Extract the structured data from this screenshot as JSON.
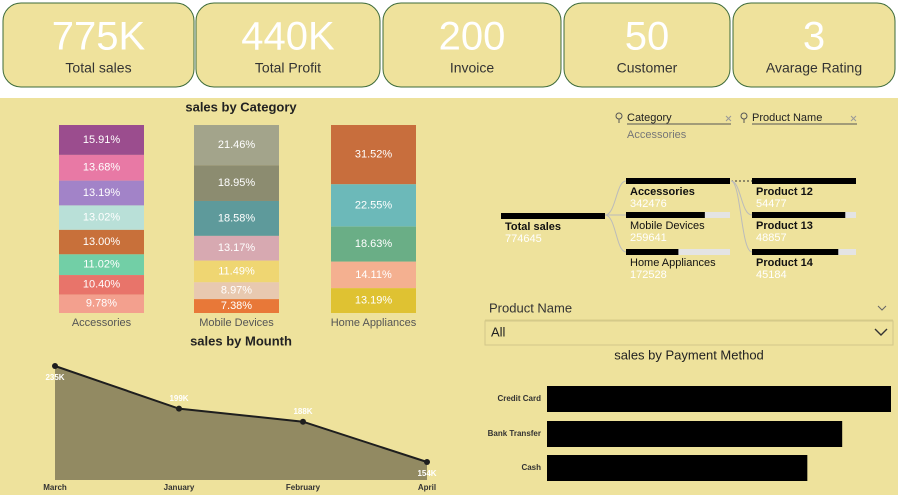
{
  "kpis": [
    {
      "value": "775K",
      "label": "Total sales"
    },
    {
      "value": "440K",
      "label": "Total Profit"
    },
    {
      "value": "200",
      "label": "Invoice"
    },
    {
      "value": "50",
      "label": "Customer"
    },
    {
      "value": "3",
      "label": "Avarage Rating"
    }
  ],
  "chart_data": [
    {
      "type": "stacked-column",
      "title": "sales by Category",
      "categories": [
        "Accessories",
        "Mobile Devices",
        "Home Appliances"
      ],
      "stacks": [
        {
          "values": [
            15.91,
            13.68,
            13.19,
            13.02,
            13.0,
            11.02,
            10.4,
            9.78
          ],
          "value_labels": [
            "15.91%",
            "13.68%",
            "13.19%",
            "13.02%",
            "13.00%",
            "11.02%",
            "10.40%",
            "9.78%"
          ],
          "colors": [
            "#9b4d8e",
            "#e879a5",
            "#a283c8",
            "#b9e0d8",
            "#c8703a",
            "#72cfa6",
            "#e8746a",
            "#f3a08e"
          ]
        },
        {
          "values": [
            21.46,
            18.95,
            18.58,
            13.17,
            11.49,
            8.97,
            7.38
          ],
          "value_labels": [
            "21.46%",
            "18.95%",
            "18.58%",
            "13.17%",
            "11.49%",
            "8.97%",
            "7.38%"
          ],
          "colors": [
            "#a3a48b",
            "#8c8c70",
            "#5e9a9b",
            "#d7a9b1",
            "#efd672",
            "#e8c9b0",
            "#e87838"
          ]
        },
        {
          "values": [
            31.52,
            22.55,
            18.63,
            14.11,
            13.19
          ],
          "value_labels": [
            "31.52%",
            "22.55%",
            "18.63%",
            "14.11%",
            "13.19%"
          ],
          "colors": [
            "#c86e3d",
            "#6cb9b9",
            "#6aae86",
            "#f4b090",
            "#dfc232"
          ]
        }
      ]
    },
    {
      "type": "area",
      "title": "sales by Mounth",
      "categories": [
        "March",
        "January",
        "February",
        "April"
      ],
      "values": [
        235000,
        199000,
        188000,
        154000
      ],
      "value_labels": [
        "235K",
        "199K",
        "188K",
        "154K"
      ],
      "color": "#928a62",
      "line_color": "#1e1e1e"
    },
    {
      "type": "hbar",
      "title": "sales by Payment Method",
      "categories": [
        "Credit Card",
        "Bank Transfer",
        "Cash"
      ],
      "values": [
        296000,
        254000,
        224000
      ],
      "color": "#000000"
    }
  ],
  "decomposition_tree": {
    "filters": [
      {
        "label": "Category",
        "value": "Accessories"
      },
      {
        "label": "Product Name"
      }
    ],
    "levels": [
      [
        {
          "label": "Total sales",
          "value": 774645
        }
      ],
      [
        {
          "label": "Accessories",
          "value": 342476
        },
        {
          "label": "Mobile Devices",
          "value": 259641
        },
        {
          "label": "Home Appliances",
          "value": 172528
        }
      ],
      [
        {
          "label": "Product 12",
          "value": 54477
        },
        {
          "label": "Product 13",
          "value": 48857
        },
        {
          "label": "Product 14",
          "value": 45184
        }
      ]
    ]
  },
  "slicer": {
    "label": "Product Name",
    "selection": "All"
  }
}
